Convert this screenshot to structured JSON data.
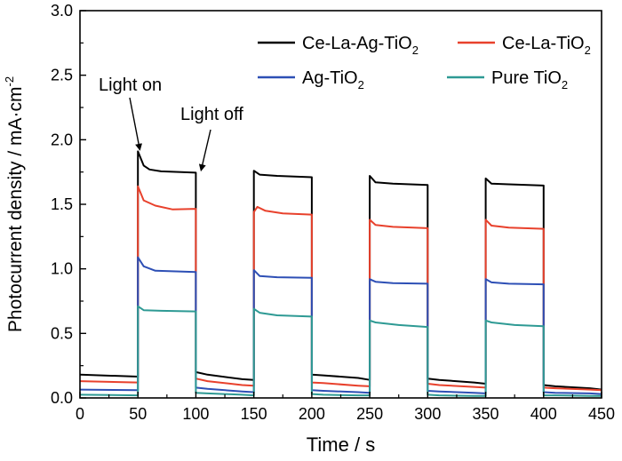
{
  "chart_data": {
    "type": "line",
    "xlabel": "Time / s",
    "ylabel": "Photocurrent density / mA·cm",
    "ylabel_sup": "-2",
    "xlim": [
      0,
      450
    ],
    "ylim": [
      0,
      3.0
    ],
    "xticks": [
      "0",
      "50",
      "100",
      "150",
      "200",
      "250",
      "300",
      "350",
      "400",
      "450"
    ],
    "yticks": [
      "0.0",
      "0.5",
      "1.0",
      "1.5",
      "2.0",
      "2.5",
      "3.0"
    ],
    "grid": false,
    "legend_position": "top-right",
    "annotations": [
      {
        "text": "Light on",
        "target": [
          50,
          1.9
        ]
      },
      {
        "text": "Light off",
        "target": [
          100,
          1.74
        ]
      }
    ],
    "series": [
      {
        "name": "Ce-La-Ag-TiO",
        "name_sub": "2",
        "color": "#000000",
        "points": [
          [
            0,
            0.18
          ],
          [
            50,
            0.165
          ],
          [
            50,
            1.91
          ],
          [
            55,
            1.8
          ],
          [
            60,
            1.77
          ],
          [
            70,
            1.755
          ],
          [
            100,
            1.745
          ],
          [
            100,
            0.2
          ],
          [
            110,
            0.18
          ],
          [
            140,
            0.145
          ],
          [
            150,
            0.14
          ],
          [
            150,
            1.76
          ],
          [
            155,
            1.73
          ],
          [
            170,
            1.72
          ],
          [
            200,
            1.71
          ],
          [
            200,
            0.18
          ],
          [
            210,
            0.175
          ],
          [
            240,
            0.155
          ],
          [
            250,
            0.14
          ],
          [
            250,
            1.72
          ],
          [
            255,
            1.67
          ],
          [
            270,
            1.66
          ],
          [
            300,
            1.65
          ],
          [
            300,
            0.15
          ],
          [
            310,
            0.14
          ],
          [
            340,
            0.12
          ],
          [
            350,
            0.11
          ],
          [
            350,
            1.7
          ],
          [
            355,
            1.66
          ],
          [
            370,
            1.655
          ],
          [
            400,
            1.645
          ],
          [
            400,
            0.1
          ],
          [
            410,
            0.09
          ],
          [
            440,
            0.075
          ],
          [
            450,
            0.065
          ]
        ]
      },
      {
        "name": "Ce-La-TiO",
        "name_sub": "2",
        "color": "#e8412c",
        "points": [
          [
            0,
            0.13
          ],
          [
            50,
            0.12
          ],
          [
            50,
            1.64
          ],
          [
            55,
            1.53
          ],
          [
            65,
            1.49
          ],
          [
            80,
            1.46
          ],
          [
            100,
            1.465
          ],
          [
            100,
            0.15
          ],
          [
            110,
            0.13
          ],
          [
            140,
            0.1
          ],
          [
            150,
            0.095
          ],
          [
            150,
            1.44
          ],
          [
            153,
            1.48
          ],
          [
            160,
            1.45
          ],
          [
            175,
            1.43
          ],
          [
            200,
            1.42
          ],
          [
            200,
            0.12
          ],
          [
            210,
            0.115
          ],
          [
            240,
            0.095
          ],
          [
            250,
            0.09
          ],
          [
            250,
            1.38
          ],
          [
            255,
            1.34
          ],
          [
            270,
            1.325
          ],
          [
            300,
            1.315
          ],
          [
            300,
            0.11
          ],
          [
            310,
            0.1
          ],
          [
            340,
            0.085
          ],
          [
            350,
            0.08
          ],
          [
            350,
            1.38
          ],
          [
            355,
            1.335
          ],
          [
            370,
            1.32
          ],
          [
            400,
            1.31
          ],
          [
            400,
            0.08
          ],
          [
            410,
            0.075
          ],
          [
            440,
            0.065
          ],
          [
            450,
            0.06
          ]
        ]
      },
      {
        "name": "Ag-TiO",
        "name_sub": "2",
        "color": "#2d4fb5",
        "points": [
          [
            0,
            0.065
          ],
          [
            50,
            0.06
          ],
          [
            50,
            1.09
          ],
          [
            55,
            1.02
          ],
          [
            65,
            0.985
          ],
          [
            100,
            0.975
          ],
          [
            100,
            0.08
          ],
          [
            110,
            0.07
          ],
          [
            140,
            0.05
          ],
          [
            150,
            0.045
          ],
          [
            150,
            0.99
          ],
          [
            155,
            0.945
          ],
          [
            170,
            0.935
          ],
          [
            200,
            0.93
          ],
          [
            200,
            0.06
          ],
          [
            210,
            0.055
          ],
          [
            240,
            0.045
          ],
          [
            250,
            0.04
          ],
          [
            250,
            0.92
          ],
          [
            255,
            0.9
          ],
          [
            270,
            0.89
          ],
          [
            300,
            0.885
          ],
          [
            300,
            0.055
          ],
          [
            310,
            0.05
          ],
          [
            340,
            0.04
          ],
          [
            350,
            0.035
          ],
          [
            350,
            0.92
          ],
          [
            355,
            0.895
          ],
          [
            370,
            0.885
          ],
          [
            400,
            0.88
          ],
          [
            400,
            0.045
          ],
          [
            410,
            0.04
          ],
          [
            440,
            0.035
          ],
          [
            450,
            0.03
          ]
        ]
      },
      {
        "name": "Pure TiO",
        "name_sub": "2",
        "color": "#2e9a94",
        "points": [
          [
            0,
            0.025
          ],
          [
            50,
            0.02
          ],
          [
            50,
            0.71
          ],
          [
            55,
            0.68
          ],
          [
            70,
            0.675
          ],
          [
            100,
            0.67
          ],
          [
            100,
            0.04
          ],
          [
            110,
            0.035
          ],
          [
            140,
            0.025
          ],
          [
            150,
            0.02
          ],
          [
            150,
            0.69
          ],
          [
            155,
            0.66
          ],
          [
            170,
            0.64
          ],
          [
            200,
            0.63
          ],
          [
            200,
            0.03
          ],
          [
            210,
            0.025
          ],
          [
            240,
            0.02
          ],
          [
            250,
            0.02
          ],
          [
            250,
            0.6
          ],
          [
            255,
            0.585
          ],
          [
            275,
            0.565
          ],
          [
            300,
            0.55
          ],
          [
            300,
            0.025
          ],
          [
            310,
            0.02
          ],
          [
            340,
            0.015
          ],
          [
            350,
            0.015
          ],
          [
            350,
            0.6
          ],
          [
            355,
            0.585
          ],
          [
            375,
            0.565
          ],
          [
            400,
            0.555
          ],
          [
            400,
            0.02
          ],
          [
            410,
            0.02
          ],
          [
            440,
            0.015
          ],
          [
            450,
            0.015
          ]
        ]
      }
    ]
  }
}
